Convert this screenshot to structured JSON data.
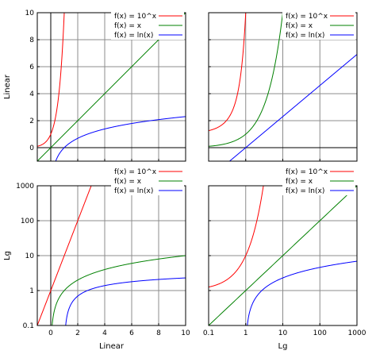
{
  "chart_data": [
    {
      "type": "line",
      "title": "",
      "xlabel": "",
      "ylabel": "Linear",
      "xscale": "linear",
      "yscale": "linear",
      "xlim": [
        -1,
        10
      ],
      "ylim": [
        -1,
        10
      ],
      "xticks": [
        0,
        2,
        4,
        6,
        8,
        10
      ],
      "xticklabels": [
        "",
        "",
        "",
        "",
        "",
        ""
      ],
      "yticks": [
        0,
        2,
        4,
        6,
        8,
        10
      ],
      "yticklabels": [
        "0",
        "2",
        "4",
        "6",
        "8",
        "10"
      ],
      "grid": true,
      "legend_position": "top-right",
      "series": [
        {
          "name": "f(x) = 10^x",
          "function": "pow10",
          "color": "#ff0000"
        },
        {
          "name": "f(x) = x",
          "function": "identity",
          "color": "#008000"
        },
        {
          "name": "f(x) = ln(x)",
          "function": "ln",
          "color": "#0000ff"
        }
      ]
    },
    {
      "type": "line",
      "title": "",
      "xlabel": "",
      "ylabel": "",
      "xscale": "log",
      "yscale": "linear",
      "xlim": [
        0.1,
        1000
      ],
      "ylim": [
        -1,
        10
      ],
      "xticks": [
        0.1,
        1,
        10,
        100,
        1000
      ],
      "xticklabels": [
        "",
        "",
        "",
        "",
        ""
      ],
      "yticks": [
        0,
        2,
        4,
        6,
        8,
        10
      ],
      "yticklabels": [
        "",
        "",
        "",
        "",
        "",
        ""
      ],
      "grid": true,
      "legend_position": "top-right",
      "series": [
        {
          "name": "f(x) = 10^x",
          "function": "pow10",
          "color": "#ff0000"
        },
        {
          "name": "f(x) = x",
          "function": "identity",
          "color": "#008000"
        },
        {
          "name": "f(x) = ln(x)",
          "function": "ln",
          "color": "#0000ff"
        }
      ]
    },
    {
      "type": "line",
      "title": "",
      "xlabel": "Linear",
      "ylabel": "Lg",
      "xscale": "linear",
      "yscale": "log",
      "xlim": [
        -1,
        10
      ],
      "ylim": [
        0.1,
        1000
      ],
      "xticks": [
        0,
        2,
        4,
        6,
        8,
        10
      ],
      "xticklabels": [
        "0",
        "2",
        "4",
        "6",
        "8",
        "10"
      ],
      "yticks": [
        0.1,
        1,
        10,
        100,
        1000
      ],
      "yticklabels": [
        "0.1",
        "1",
        "10",
        "100",
        "1000"
      ],
      "grid": true,
      "legend_position": "top-right",
      "series": [
        {
          "name": "f(x) = 10^x",
          "function": "pow10",
          "color": "#ff0000"
        },
        {
          "name": "f(x) = x",
          "function": "identity",
          "color": "#008000"
        },
        {
          "name": "f(x) = ln(x)",
          "function": "ln",
          "color": "#0000ff"
        }
      ]
    },
    {
      "type": "line",
      "title": "",
      "xlabel": "Lg",
      "ylabel": "",
      "xscale": "log",
      "yscale": "log",
      "xlim": [
        0.1,
        1000
      ],
      "ylim": [
        0.1,
        1000
      ],
      "xticks": [
        0.1,
        1,
        10,
        100,
        1000
      ],
      "xticklabels": [
        "0.1",
        "1",
        "10",
        "100",
        "1000"
      ],
      "yticks": [
        0.1,
        1,
        10,
        100,
        1000
      ],
      "yticklabels": [
        "",
        "",
        "",
        "",
        ""
      ],
      "grid": true,
      "legend_position": "top-right",
      "series": [
        {
          "name": "f(x) = 10^x",
          "function": "pow10",
          "color": "#ff0000"
        },
        {
          "name": "f(x) = x",
          "function": "identity",
          "color": "#008000"
        },
        {
          "name": "f(x) = ln(x)",
          "function": "ln",
          "color": "#0000ff"
        }
      ]
    }
  ]
}
